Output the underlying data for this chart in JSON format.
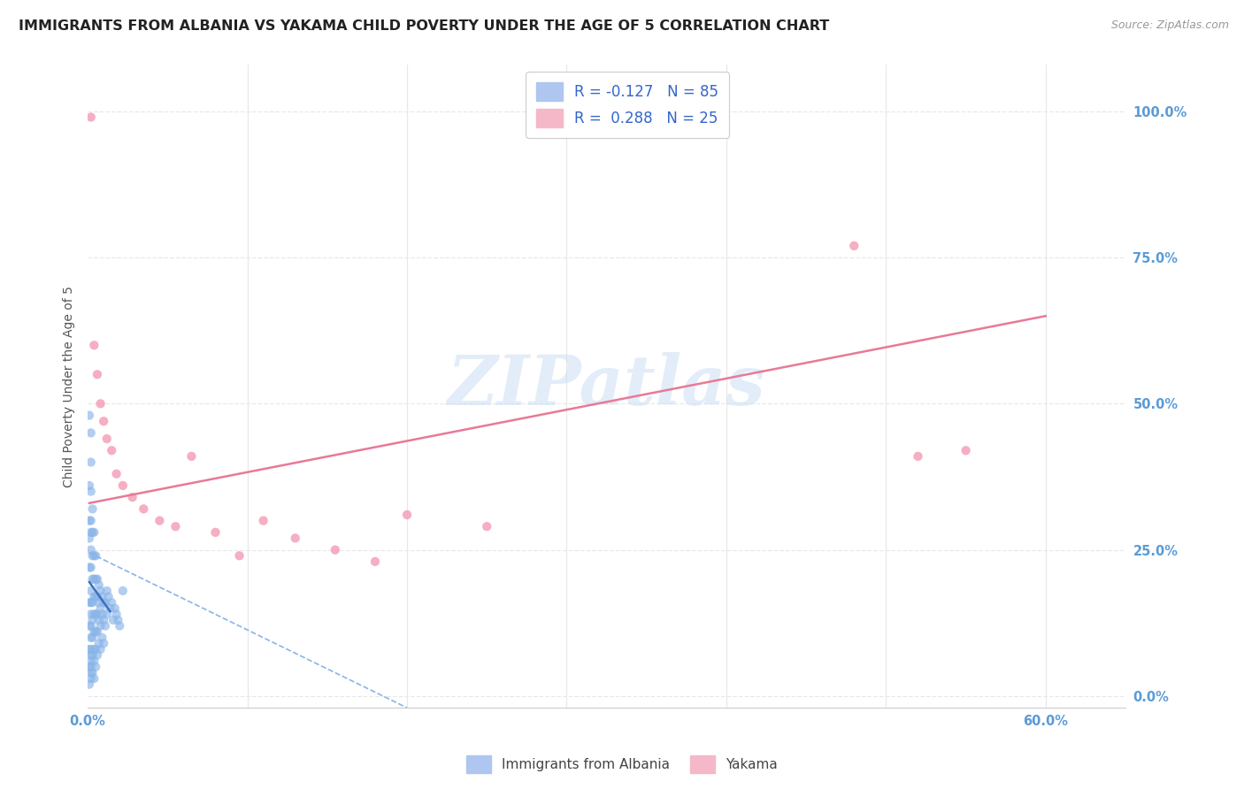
{
  "title": "IMMIGRANTS FROM ALBANIA VS YAKAMA CHILD POVERTY UNDER THE AGE OF 5 CORRELATION CHART",
  "source": "Source: ZipAtlas.com",
  "ylabel": "Child Poverty Under the Age of 5",
  "ytick_labels": [
    "100.0%",
    "75.0%",
    "50.0%",
    "25.0%",
    "0.0%"
  ],
  "ytick_values": [
    1.0,
    0.75,
    0.5,
    0.25,
    0.0
  ],
  "xtick_labels": [
    "0.0%",
    "60.0%"
  ],
  "xtick_values": [
    0.0,
    0.6
  ],
  "xlim": [
    0.0,
    0.65
  ],
  "ylim": [
    -0.02,
    1.08
  ],
  "watermark": "ZIPatlas",
  "legend_r_items": [
    {
      "label": "R = -0.127",
      "n_label": "N = 85",
      "color": "#aec6f0"
    },
    {
      "label": "R =  0.288",
      "n_label": "N = 25",
      "color": "#f4b8c8"
    }
  ],
  "legend_bottom": [
    {
      "label": "Immigrants from Albania",
      "color": "#aec6f0"
    },
    {
      "label": "Yakama",
      "color": "#f4b8c8"
    }
  ],
  "blue_scatter_x": [
    0.001,
    0.001,
    0.001,
    0.001,
    0.001,
    0.001,
    0.001,
    0.001,
    0.001,
    0.001,
    0.002,
    0.002,
    0.002,
    0.002,
    0.002,
    0.002,
    0.002,
    0.002,
    0.002,
    0.002,
    0.002,
    0.002,
    0.002,
    0.002,
    0.002,
    0.002,
    0.002,
    0.002,
    0.003,
    0.003,
    0.003,
    0.003,
    0.003,
    0.003,
    0.003,
    0.003,
    0.003,
    0.004,
    0.004,
    0.004,
    0.004,
    0.004,
    0.004,
    0.004,
    0.004,
    0.004,
    0.005,
    0.005,
    0.005,
    0.005,
    0.005,
    0.005,
    0.005,
    0.006,
    0.006,
    0.006,
    0.006,
    0.006,
    0.007,
    0.007,
    0.007,
    0.007,
    0.008,
    0.008,
    0.008,
    0.008,
    0.009,
    0.009,
    0.009,
    0.01,
    0.01,
    0.01,
    0.011,
    0.011,
    0.012,
    0.012,
    0.013,
    0.014,
    0.015,
    0.016,
    0.017,
    0.018,
    0.019,
    0.02,
    0.022
  ],
  "blue_scatter_y": [
    0.48,
    0.36,
    0.3,
    0.27,
    0.22,
    0.16,
    0.12,
    0.08,
    0.05,
    0.02,
    0.45,
    0.4,
    0.35,
    0.3,
    0.28,
    0.25,
    0.22,
    0.18,
    0.16,
    0.14,
    0.12,
    0.1,
    0.08,
    0.07,
    0.06,
    0.05,
    0.04,
    0.03,
    0.32,
    0.28,
    0.24,
    0.2,
    0.16,
    0.13,
    0.1,
    0.07,
    0.04,
    0.28,
    0.24,
    0.2,
    0.17,
    0.14,
    0.11,
    0.08,
    0.06,
    0.03,
    0.24,
    0.2,
    0.17,
    0.14,
    0.11,
    0.08,
    0.05,
    0.2,
    0.17,
    0.14,
    0.11,
    0.07,
    0.19,
    0.16,
    0.13,
    0.09,
    0.18,
    0.15,
    0.12,
    0.08,
    0.17,
    0.14,
    0.1,
    0.16,
    0.13,
    0.09,
    0.16,
    0.12,
    0.18,
    0.14,
    0.17,
    0.15,
    0.16,
    0.13,
    0.15,
    0.14,
    0.13,
    0.12,
    0.18
  ],
  "pink_scatter_x": [
    0.002,
    0.004,
    0.006,
    0.008,
    0.01,
    0.012,
    0.015,
    0.018,
    0.022,
    0.028,
    0.035,
    0.045,
    0.055,
    0.065,
    0.08,
    0.095,
    0.11,
    0.13,
    0.155,
    0.18,
    0.2,
    0.25,
    0.48,
    0.52,
    0.55
  ],
  "pink_scatter_y": [
    0.99,
    0.6,
    0.55,
    0.5,
    0.47,
    0.44,
    0.42,
    0.38,
    0.36,
    0.34,
    0.32,
    0.3,
    0.29,
    0.41,
    0.28,
    0.24,
    0.3,
    0.27,
    0.25,
    0.23,
    0.31,
    0.29,
    0.77,
    0.41,
    0.42
  ],
  "blue_solid_line_x": [
    0.001,
    0.014
  ],
  "blue_solid_line_y": [
    0.195,
    0.145
  ],
  "blue_dashed_line_x": [
    0.001,
    0.2
  ],
  "blue_dashed_line_y": [
    0.245,
    -0.02
  ],
  "pink_solid_line_x": [
    0.001,
    0.6
  ],
  "pink_solid_line_y": [
    0.33,
    0.65
  ],
  "blue_scatter_color": "#89b4e8",
  "pink_scatter_color": "#f4a0b8",
  "blue_solid_color": "#3a70c0",
  "blue_dashed_color": "#89b4e8",
  "pink_solid_color": "#e87a96",
  "grid_color": "#e8e8e8",
  "title_color": "#222222",
  "axis_tick_color": "#5b9bd5",
  "background_color": "#ffffff",
  "title_fontsize": 11.5,
  "axis_label_fontsize": 10,
  "tick_fontsize": 10.5,
  "scatter_size": 55
}
